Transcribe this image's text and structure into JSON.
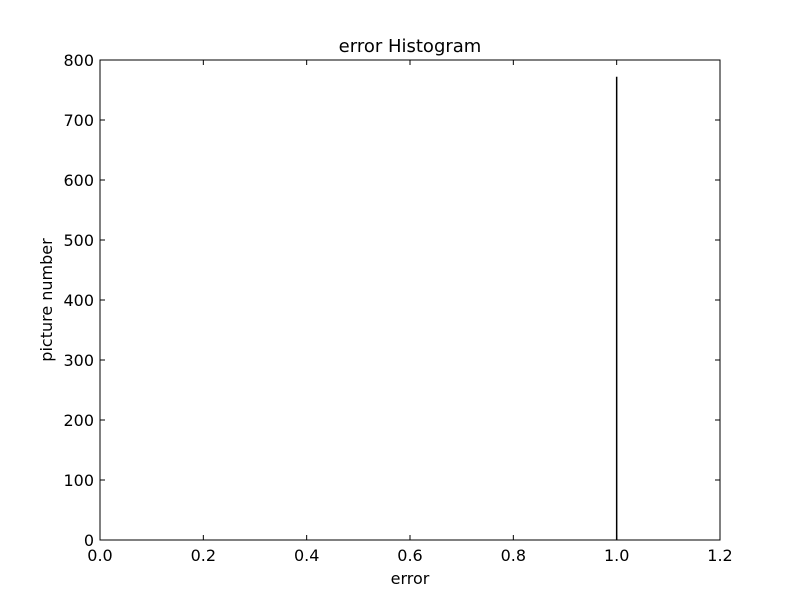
{
  "chart_data": {
    "type": "bar",
    "title": "error Histogram",
    "xlabel": "error",
    "ylabel": "picture number",
    "xlim": [
      0.0,
      1.2
    ],
    "ylim": [
      0,
      800
    ],
    "xticks": [
      "0.0",
      "0.2",
      "0.4",
      "0.6",
      "0.8",
      "1.0",
      "1.2"
    ],
    "yticks": [
      "0",
      "100",
      "200",
      "300",
      "400",
      "500",
      "600",
      "700",
      "800"
    ],
    "bins": [
      {
        "x": 1.0,
        "value": 772
      }
    ],
    "grid": false,
    "colors": {
      "bar": "#000000",
      "axes": "#000000",
      "background": "#ffffff"
    }
  }
}
